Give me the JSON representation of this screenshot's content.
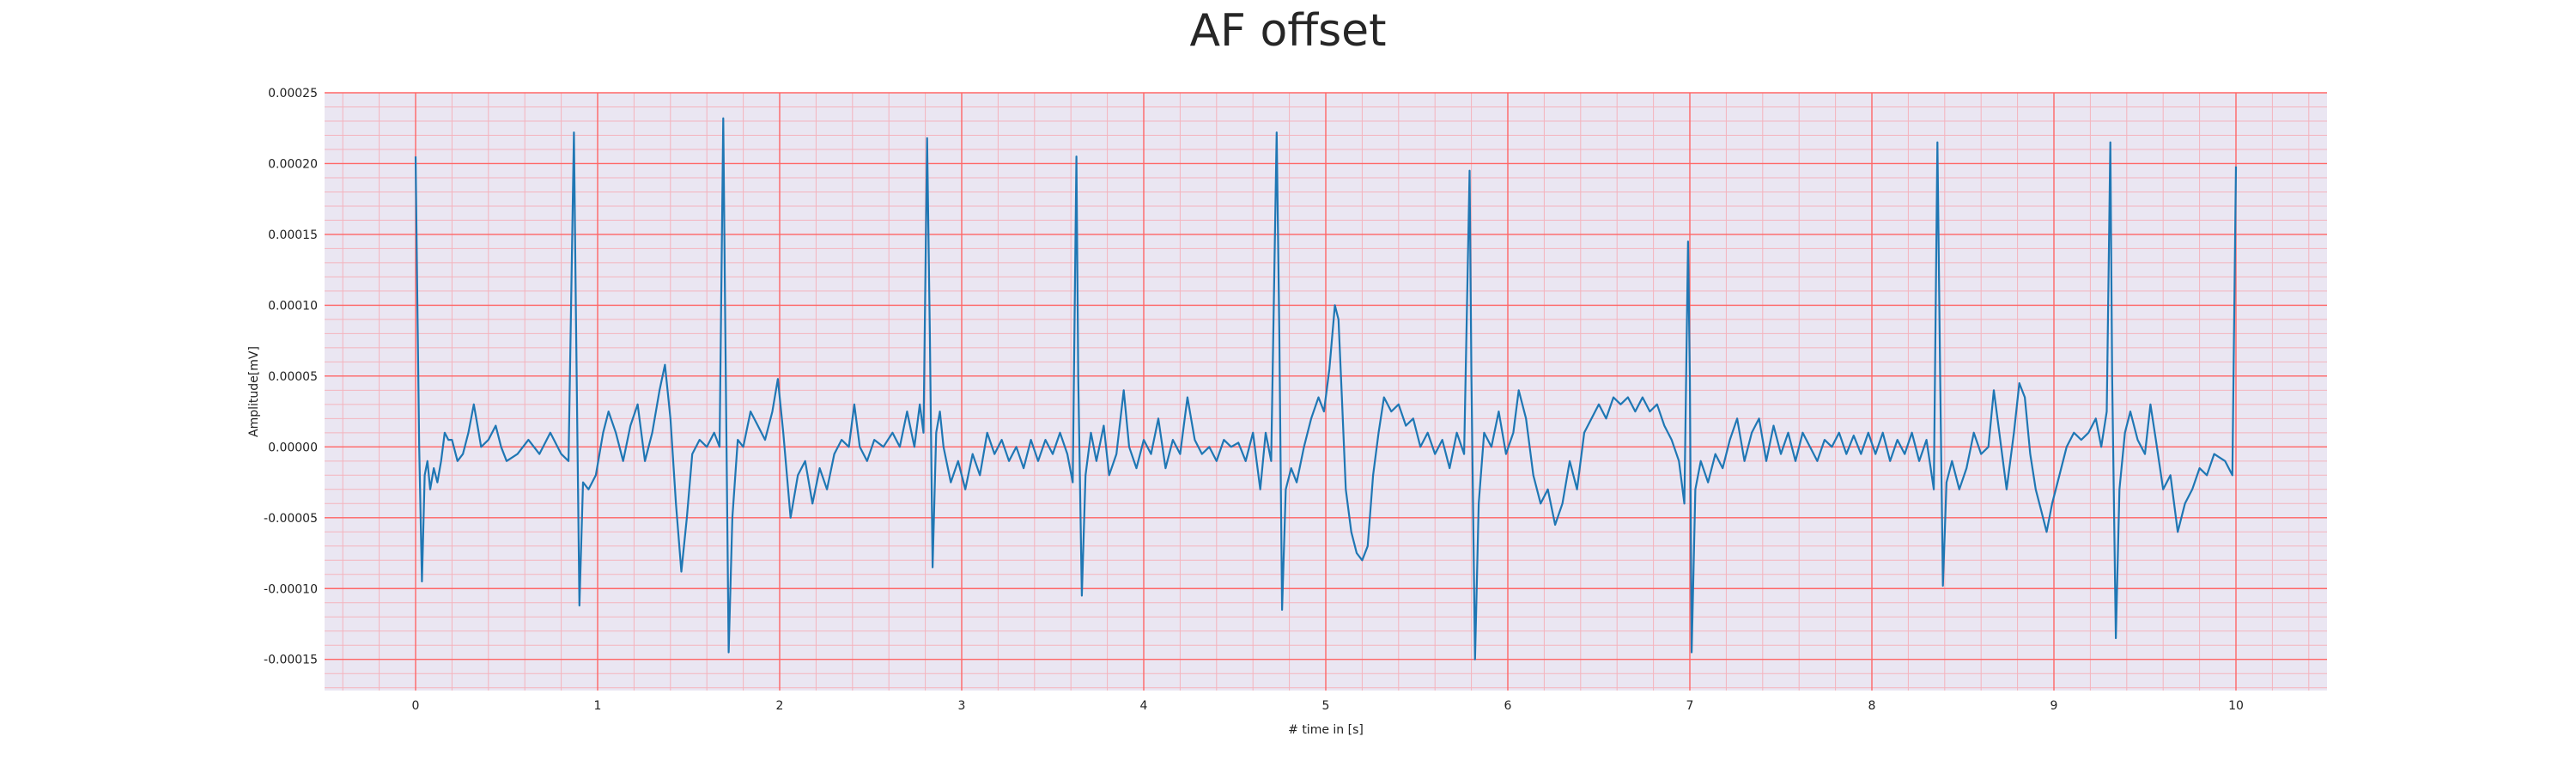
{
  "chart_data": {
    "type": "line",
    "title": "AF offset",
    "xlabel": "# time in [s]",
    "ylabel": "Amplitude[mV]",
    "xlim": [
      -0.5,
      10.5
    ],
    "ylim": [
      -0.000172,
      0.00025
    ],
    "xticks": [
      0,
      1,
      2,
      3,
      4,
      5,
      6,
      7,
      8,
      9,
      10
    ],
    "xtick_labels": [
      "0",
      "1",
      "2",
      "3",
      "4",
      "5",
      "6",
      "7",
      "8",
      "9",
      "10"
    ],
    "yticks": [
      0.00025,
      0.0002,
      0.00015,
      0.0001,
      5e-05,
      0,
      -5e-05,
      -0.0001,
      -0.00015
    ],
    "ytick_labels": [
      "0.00025",
      "0.00020",
      "0.00015",
      "0.00010",
      "0.00005",
      "0.00000",
      "-0.00005",
      "-0.00010",
      "-0.00015"
    ],
    "grid": true,
    "colors": {
      "line": "#1f77b4",
      "major_grid": "#ff6666",
      "minor_grid": "#f4b3bd",
      "plot_bg": "#eae6f2"
    },
    "series": [
      {
        "values": [
          [
            0.0,
            0.000205
          ],
          [
            0.01,
            0.0001
          ],
          [
            0.02,
            0.0
          ],
          [
            0.035,
            -9.5e-05
          ],
          [
            0.05,
            -2e-05
          ],
          [
            0.065,
            -1e-05
          ],
          [
            0.08,
            -3e-05
          ],
          [
            0.1,
            -1.5e-05
          ],
          [
            0.12,
            -2.5e-05
          ],
          [
            0.14,
            -1e-05
          ],
          [
            0.16,
            1e-05
          ],
          [
            0.18,
            5e-06
          ],
          [
            0.2,
            5e-06
          ],
          [
            0.23,
            -1e-05
          ],
          [
            0.26,
            -5e-06
          ],
          [
            0.29,
            1e-05
          ],
          [
            0.32,
            3e-05
          ],
          [
            0.34,
            1.5e-05
          ],
          [
            0.36,
            0.0
          ],
          [
            0.4,
            5e-06
          ],
          [
            0.44,
            1.5e-05
          ],
          [
            0.47,
            0.0
          ],
          [
            0.5,
            -1e-05
          ],
          [
            0.56,
            -5e-06
          ],
          [
            0.62,
            5e-06
          ],
          [
            0.68,
            -5e-06
          ],
          [
            0.74,
            1e-05
          ],
          [
            0.8,
            -5e-06
          ],
          [
            0.84,
            -1e-05
          ],
          [
            0.87,
            0.000222
          ],
          [
            0.88,
            0.0001
          ],
          [
            0.9,
            -0.000112
          ],
          [
            0.92,
            -2.5e-05
          ],
          [
            0.95,
            -3e-05
          ],
          [
            0.99,
            -2e-05
          ],
          [
            1.03,
            1e-05
          ],
          [
            1.06,
            2.5e-05
          ],
          [
            1.1,
            1e-05
          ],
          [
            1.14,
            -1e-05
          ],
          [
            1.18,
            1.5e-05
          ],
          [
            1.22,
            3e-05
          ],
          [
            1.26,
            -1e-05
          ],
          [
            1.3,
            1e-05
          ],
          [
            1.34,
            4e-05
          ],
          [
            1.37,
            5.8e-05
          ],
          [
            1.4,
            2e-05
          ],
          [
            1.43,
            -4e-05
          ],
          [
            1.46,
            -8.8e-05
          ],
          [
            1.49,
            -5e-05
          ],
          [
            1.52,
            -5e-06
          ],
          [
            1.56,
            5e-06
          ],
          [
            1.6,
            0.0
          ],
          [
            1.64,
            1e-05
          ],
          [
            1.67,
            0.0
          ],
          [
            1.69,
            0.000232
          ],
          [
            1.7,
            0.0001
          ],
          [
            1.72,
            -0.000145
          ],
          [
            1.74,
            -5e-05
          ],
          [
            1.77,
            5e-06
          ],
          [
            1.8,
            0.0
          ],
          [
            1.84,
            2.5e-05
          ],
          [
            1.88,
            1.5e-05
          ],
          [
            1.92,
            5e-06
          ],
          [
            1.96,
            2.5e-05
          ],
          [
            1.99,
            4.8e-05
          ],
          [
            2.02,
            1e-05
          ],
          [
            2.06,
            -5e-05
          ],
          [
            2.1,
            -2e-05
          ],
          [
            2.14,
            -1e-05
          ],
          [
            2.18,
            -4e-05
          ],
          [
            2.22,
            -1.5e-05
          ],
          [
            2.26,
            -3e-05
          ],
          [
            2.3,
            -5e-06
          ],
          [
            2.34,
            5e-06
          ],
          [
            2.38,
            0.0
          ],
          [
            2.41,
            3e-05
          ],
          [
            2.44,
            0.0
          ],
          [
            2.48,
            -1e-05
          ],
          [
            2.52,
            5e-06
          ],
          [
            2.57,
            0.0
          ],
          [
            2.62,
            1e-05
          ],
          [
            2.66,
            0.0
          ],
          [
            2.7,
            2.5e-05
          ],
          [
            2.74,
            0.0
          ],
          [
            2.77,
            3e-05
          ],
          [
            2.79,
            1e-05
          ],
          [
            2.81,
            0.000218
          ],
          [
            2.825,
            8e-05
          ],
          [
            2.84,
            -8.5e-05
          ],
          [
            2.86,
            1e-05
          ],
          [
            2.88,
            2.5e-05
          ],
          [
            2.9,
            0.0
          ],
          [
            2.94,
            -2.5e-05
          ],
          [
            2.98,
            -1e-05
          ],
          [
            3.02,
            -3e-05
          ],
          [
            3.06,
            -5e-06
          ],
          [
            3.1,
            -2e-05
          ],
          [
            3.14,
            1e-05
          ],
          [
            3.18,
            -5e-06
          ],
          [
            3.22,
            5e-06
          ],
          [
            3.26,
            -1e-05
          ],
          [
            3.3,
            0.0
          ],
          [
            3.34,
            -1.5e-05
          ],
          [
            3.38,
            5e-06
          ],
          [
            3.42,
            -1e-05
          ],
          [
            3.46,
            5e-06
          ],
          [
            3.5,
            -5e-06
          ],
          [
            3.54,
            1e-05
          ],
          [
            3.58,
            -5e-06
          ],
          [
            3.61,
            -2.5e-05
          ],
          [
            3.63,
            0.000205
          ],
          [
            3.64,
            5e-05
          ],
          [
            3.66,
            -0.000105
          ],
          [
            3.68,
            -2e-05
          ],
          [
            3.71,
            1e-05
          ],
          [
            3.74,
            -1e-05
          ],
          [
            3.78,
            1.5e-05
          ],
          [
            3.81,
            -2e-05
          ],
          [
            3.85,
            -5e-06
          ],
          [
            3.89,
            4e-05
          ],
          [
            3.92,
            0.0
          ],
          [
            3.96,
            -1.5e-05
          ],
          [
            4.0,
            5e-06
          ],
          [
            4.04,
            -5e-06
          ],
          [
            4.08,
            2e-05
          ],
          [
            4.12,
            -1.5e-05
          ],
          [
            4.16,
            5e-06
          ],
          [
            4.2,
            -5e-06
          ],
          [
            4.24,
            3.5e-05
          ],
          [
            4.28,
            5e-06
          ],
          [
            4.32,
            -5e-06
          ],
          [
            4.36,
            0.0
          ],
          [
            4.4,
            -1e-05
          ],
          [
            4.44,
            5e-06
          ],
          [
            4.48,
            0.0
          ],
          [
            4.52,
            3e-06
          ],
          [
            4.56,
            -1e-05
          ],
          [
            4.6,
            1e-05
          ],
          [
            4.64,
            -3e-05
          ],
          [
            4.67,
            1e-05
          ],
          [
            4.7,
            -1e-05
          ],
          [
            4.73,
            0.000222
          ],
          [
            4.745,
            8e-05
          ],
          [
            4.76,
            -0.000115
          ],
          [
            4.78,
            -3e-05
          ],
          [
            4.81,
            -1.5e-05
          ],
          [
            4.84,
            -2.5e-05
          ],
          [
            4.88,
            0.0
          ],
          [
            4.92,
            2e-05
          ],
          [
            4.96,
            3.5e-05
          ],
          [
            4.99,
            2.5e-05
          ],
          [
            5.02,
            5.5e-05
          ],
          [
            5.05,
            0.0001
          ],
          [
            5.07,
            9e-05
          ],
          [
            5.09,
            3e-05
          ],
          [
            5.11,
            -3e-05
          ],
          [
            5.14,
            -6e-05
          ],
          [
            5.17,
            -7.5e-05
          ],
          [
            5.2,
            -8e-05
          ],
          [
            5.23,
            -7e-05
          ],
          [
            5.26,
            -2e-05
          ],
          [
            5.29,
            1e-05
          ],
          [
            5.32,
            3.5e-05
          ],
          [
            5.36,
            2.5e-05
          ],
          [
            5.4,
            3e-05
          ],
          [
            5.44,
            1.5e-05
          ],
          [
            5.48,
            2e-05
          ],
          [
            5.52,
            0.0
          ],
          [
            5.56,
            1e-05
          ],
          [
            5.6,
            -5e-06
          ],
          [
            5.64,
            5e-06
          ],
          [
            5.68,
            -1.5e-05
          ],
          [
            5.72,
            1e-05
          ],
          [
            5.76,
            -5e-06
          ],
          [
            5.79,
            0.000195
          ],
          [
            5.8,
            5e-05
          ],
          [
            5.82,
            -0.00015
          ],
          [
            5.84,
            -4e-05
          ],
          [
            5.87,
            1e-05
          ],
          [
            5.91,
            0.0
          ],
          [
            5.95,
            2.5e-05
          ],
          [
            5.99,
            -5e-06
          ],
          [
            6.03,
            1e-05
          ],
          [
            6.06,
            4e-05
          ],
          [
            6.1,
            2e-05
          ],
          [
            6.14,
            -2e-05
          ],
          [
            6.18,
            -4e-05
          ],
          [
            6.22,
            -3e-05
          ],
          [
            6.26,
            -5.5e-05
          ],
          [
            6.3,
            -4e-05
          ],
          [
            6.34,
            -1e-05
          ],
          [
            6.38,
            -3e-05
          ],
          [
            6.42,
            1e-05
          ],
          [
            6.46,
            2e-05
          ],
          [
            6.5,
            3e-05
          ],
          [
            6.54,
            2e-05
          ],
          [
            6.58,
            3.5e-05
          ],
          [
            6.62,
            3e-05
          ],
          [
            6.66,
            3.5e-05
          ],
          [
            6.7,
            2.5e-05
          ],
          [
            6.74,
            3.5e-05
          ],
          [
            6.78,
            2.5e-05
          ],
          [
            6.82,
            3e-05
          ],
          [
            6.86,
            1.5e-05
          ],
          [
            6.9,
            5e-06
          ],
          [
            6.94,
            -1e-05
          ],
          [
            6.97,
            -4e-05
          ],
          [
            6.99,
            0.000145
          ],
          [
            7.0,
            5e-05
          ],
          [
            7.01,
            -0.000145
          ],
          [
            7.03,
            -3e-05
          ],
          [
            7.06,
            -1e-05
          ],
          [
            7.1,
            -2.5e-05
          ],
          [
            7.14,
            -5e-06
          ],
          [
            7.18,
            -1.5e-05
          ],
          [
            7.22,
            5e-06
          ],
          [
            7.26,
            2e-05
          ],
          [
            7.3,
            -1e-05
          ],
          [
            7.34,
            1e-05
          ],
          [
            7.38,
            2e-05
          ],
          [
            7.42,
            -1e-05
          ],
          [
            7.46,
            1.5e-05
          ],
          [
            7.5,
            -5e-06
          ],
          [
            7.54,
            1e-05
          ],
          [
            7.58,
            -1e-05
          ],
          [
            7.62,
            1e-05
          ],
          [
            7.66,
            0.0
          ],
          [
            7.7,
            -1e-05
          ],
          [
            7.74,
            5e-06
          ],
          [
            7.78,
            0.0
          ],
          [
            7.82,
            1e-05
          ],
          [
            7.86,
            -5e-06
          ],
          [
            7.9,
            8e-06
          ],
          [
            7.94,
            -5e-06
          ],
          [
            7.98,
            1e-05
          ],
          [
            8.02,
            -5e-06
          ],
          [
            8.06,
            1e-05
          ],
          [
            8.1,
            -1e-05
          ],
          [
            8.14,
            5e-06
          ],
          [
            8.18,
            -5e-06
          ],
          [
            8.22,
            1e-05
          ],
          [
            8.26,
            -1e-05
          ],
          [
            8.3,
            5e-06
          ],
          [
            8.34,
            -3e-05
          ],
          [
            8.36,
            0.000215
          ],
          [
            8.375,
            5e-05
          ],
          [
            8.39,
            -9.8e-05
          ],
          [
            8.41,
            -2.5e-05
          ],
          [
            8.44,
            -1e-05
          ],
          [
            8.48,
            -3e-05
          ],
          [
            8.52,
            -1.5e-05
          ],
          [
            8.56,
            1e-05
          ],
          [
            8.6,
            -5e-06
          ],
          [
            8.64,
            0.0
          ],
          [
            8.67,
            4e-05
          ],
          [
            8.7,
            1e-05
          ],
          [
            8.74,
            -3e-05
          ],
          [
            8.78,
            1e-05
          ],
          [
            8.81,
            4.5e-05
          ],
          [
            8.84,
            3.5e-05
          ],
          [
            8.87,
            -5e-06
          ],
          [
            8.9,
            -3e-05
          ],
          [
            8.93,
            -4.5e-05
          ],
          [
            8.96,
            -6e-05
          ],
          [
            8.99,
            -4e-05
          ],
          [
            9.03,
            -2e-05
          ],
          [
            9.07,
            0.0
          ],
          [
            9.11,
            1e-05
          ],
          [
            9.15,
            5e-06
          ],
          [
            9.19,
            1e-05
          ],
          [
            9.23,
            2e-05
          ],
          [
            9.26,
            0.0
          ],
          [
            9.29,
            2.5e-05
          ],
          [
            9.31,
            0.000215
          ],
          [
            9.32,
            5e-05
          ],
          [
            9.34,
            -0.000135
          ],
          [
            9.36,
            -3e-05
          ],
          [
            9.39,
            1e-05
          ],
          [
            9.42,
            2.5e-05
          ],
          [
            9.46,
            5e-06
          ],
          [
            9.5,
            -5e-06
          ],
          [
            9.53,
            3e-05
          ],
          [
            9.56,
            5e-06
          ],
          [
            9.6,
            -3e-05
          ],
          [
            9.64,
            -2e-05
          ],
          [
            9.68,
            -6e-05
          ],
          [
            9.72,
            -4e-05
          ],
          [
            9.76,
            -3e-05
          ],
          [
            9.8,
            -1.5e-05
          ],
          [
            9.84,
            -2e-05
          ],
          [
            9.88,
            -5e-06
          ],
          [
            9.94,
            -1e-05
          ],
          [
            9.98,
            -2e-05
          ],
          [
            10.0,
            0.000198
          ]
        ]
      }
    ]
  }
}
